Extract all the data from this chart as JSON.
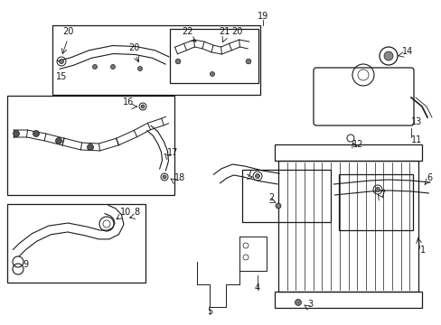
{
  "bg_color": "#ffffff",
  "fig_width": 4.89,
  "fig_height": 3.6,
  "dpi": 100,
  "image_data": "target_embed"
}
